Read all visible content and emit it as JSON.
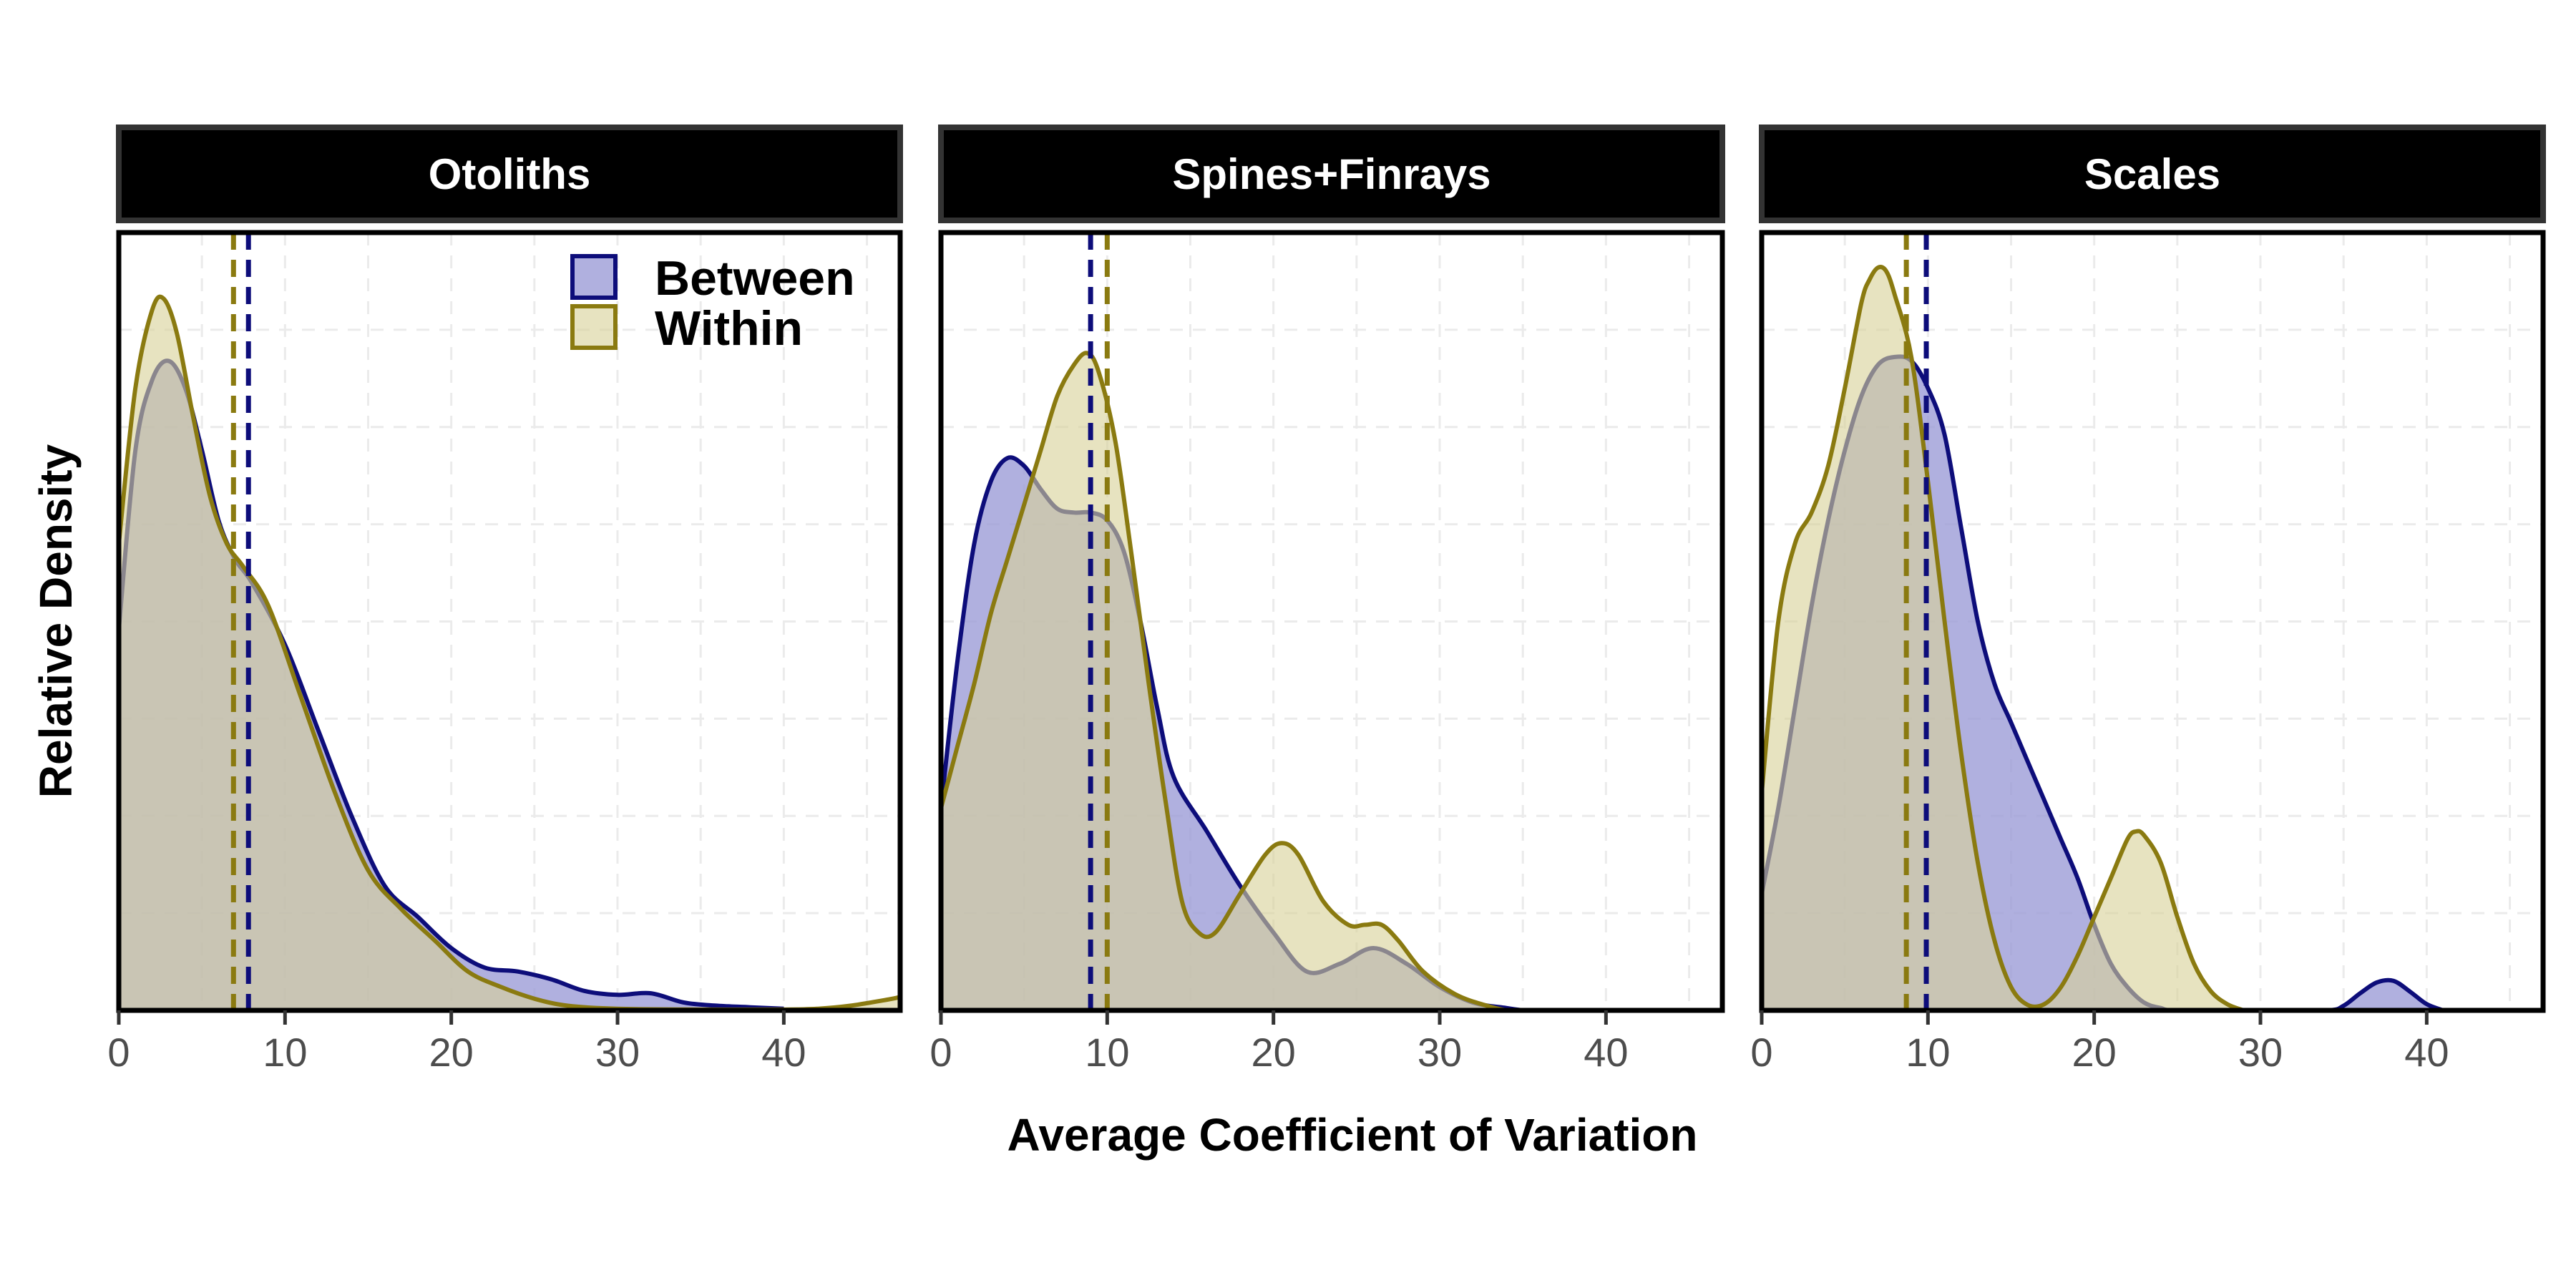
{
  "chart_data": {
    "type": "area",
    "xlabel": "Average Coefficient of Variation",
    "ylabel": "Relative Density",
    "xlim": [
      0,
      47
    ],
    "xticks": [
      "0",
      "10",
      "20",
      "30",
      "40"
    ],
    "grid": true,
    "legend": {
      "placement": "top-right of first panel",
      "entries": [
        "Between",
        "Within"
      ]
    },
    "colors": {
      "between_line": "#0d0d7a",
      "between_fill": "#9a9ad6",
      "within_line": "#8a7a10",
      "within_fill": "#d8d29a",
      "strip_bg": "#000000",
      "strip_border": "#333333"
    },
    "panels": [
      {
        "title": "Otoliths",
        "ymax": 1.0,
        "series": [
          {
            "name": "Between",
            "mean": 7.8,
            "x": [
              0,
              1,
              2,
              3,
              4,
              5,
              6,
              7,
              8,
              10,
              12,
              14,
              16,
              18,
              20,
              22,
              24,
              26,
              28,
              30,
              32,
              34,
              36,
              38,
              40
            ],
            "y": [
              0.49,
              0.72,
              0.81,
              0.835,
              0.8,
              0.72,
              0.63,
              0.58,
              0.55,
              0.47,
              0.36,
              0.25,
              0.16,
              0.12,
              0.08,
              0.055,
              0.05,
              0.04,
              0.025,
              0.02,
              0.022,
              0.01,
              0.006,
              0.004,
              0.002
            ]
          },
          {
            "name": "Within",
            "mean": 6.9,
            "x": [
              0,
              1,
              2,
              2.7,
              3.5,
              4.5,
              5.5,
              6.5,
              7.5,
              9,
              11,
              13,
              15,
              17,
              19,
              21,
              23,
              25,
              27,
              30,
              35,
              40,
              42,
              44,
              46,
              47
            ],
            "y": [
              0.6,
              0.8,
              0.9,
              0.915,
              0.87,
              0.76,
              0.66,
              0.6,
              0.57,
              0.52,
              0.4,
              0.28,
              0.18,
              0.13,
              0.09,
              0.05,
              0.03,
              0.015,
              0.006,
              0.002,
              0.001,
              0.001,
              0.002,
              0.006,
              0.013,
              0.017
            ]
          }
        ]
      },
      {
        "title": "Spines+Finrays",
        "ymax": 1.0,
        "series": [
          {
            "name": "Between",
            "mean": 9.0,
            "x": [
              0,
              1,
              2,
              3,
              4,
              5,
              6,
              7,
              8,
              9,
              10,
              11,
              12,
              13,
              14,
              16,
              18,
              20,
              22,
              24,
              26,
              28,
              30,
              32,
              34,
              35
            ],
            "y": [
              0.26,
              0.45,
              0.6,
              0.68,
              0.71,
              0.7,
              0.67,
              0.645,
              0.64,
              0.64,
              0.63,
              0.59,
              0.5,
              0.39,
              0.3,
              0.23,
              0.16,
              0.1,
              0.05,
              0.06,
              0.08,
              0.06,
              0.03,
              0.01,
              0.003,
              0.0
            ]
          },
          {
            "name": "Within",
            "mean": 10.0,
            "x": [
              0,
              1,
              2,
              3,
              4,
              5,
              6,
              7,
              8,
              8.8,
              9.5,
              10.5,
              11.5,
              12.5,
              13.5,
              14.5,
              15.5,
              16.5,
              18,
              19.5,
              20.5,
              21.5,
              23,
              24.5,
              25.5,
              26.5,
              27.5,
              29,
              31,
              33,
              34
            ],
            "y": [
              0.26,
              0.34,
              0.42,
              0.51,
              0.58,
              0.65,
              0.72,
              0.79,
              0.83,
              0.845,
              0.82,
              0.73,
              0.58,
              0.42,
              0.27,
              0.14,
              0.1,
              0.1,
              0.15,
              0.2,
              0.215,
              0.2,
              0.14,
              0.11,
              0.11,
              0.11,
              0.09,
              0.05,
              0.02,
              0.005,
              0.0
            ]
          }
        ]
      },
      {
        "title": "Scales",
        "ymax": 1.0,
        "series": [
          {
            "name": "Between",
            "mean": 9.9,
            "x": [
              0,
              1,
              2,
              3,
              4,
              5,
              6,
              7,
              8,
              9,
              10,
              11,
              12,
              13,
              14,
              15,
              16,
              17,
              18,
              19,
              20,
              21,
              22,
              23,
              24,
              25,
              30,
              34,
              35,
              36,
              37,
              38,
              39,
              40,
              41
            ],
            "y": [
              0.15,
              0.26,
              0.39,
              0.52,
              0.63,
              0.72,
              0.79,
              0.83,
              0.84,
              0.835,
              0.8,
              0.74,
              0.62,
              0.5,
              0.42,
              0.37,
              0.32,
              0.27,
              0.22,
              0.17,
              0.11,
              0.06,
              0.03,
              0.01,
              0.003,
              0.0,
              0.0,
              0.0,
              0.006,
              0.022,
              0.036,
              0.038,
              0.024,
              0.008,
              0.0
            ]
          },
          {
            "name": "Within",
            "mean": 8.7,
            "x": [
              0,
              1,
              2,
              3,
              4,
              5,
              6,
              6.5,
              7,
              7.5,
              8,
              9,
              10,
              11,
              12,
              13,
              14,
              15,
              16,
              17,
              18,
              19,
              20,
              21,
              22,
              22.5,
              23,
              24,
              25,
              26,
              27,
              28,
              29
            ],
            "y": [
              0.28,
              0.5,
              0.6,
              0.64,
              0.7,
              0.8,
              0.91,
              0.94,
              0.955,
              0.95,
              0.92,
              0.84,
              0.68,
              0.5,
              0.33,
              0.19,
              0.09,
              0.03,
              0.007,
              0.008,
              0.03,
              0.07,
              0.12,
              0.17,
              0.22,
              0.23,
              0.225,
              0.19,
              0.12,
              0.06,
              0.025,
              0.008,
              0.0
            ]
          }
        ]
      }
    ]
  }
}
